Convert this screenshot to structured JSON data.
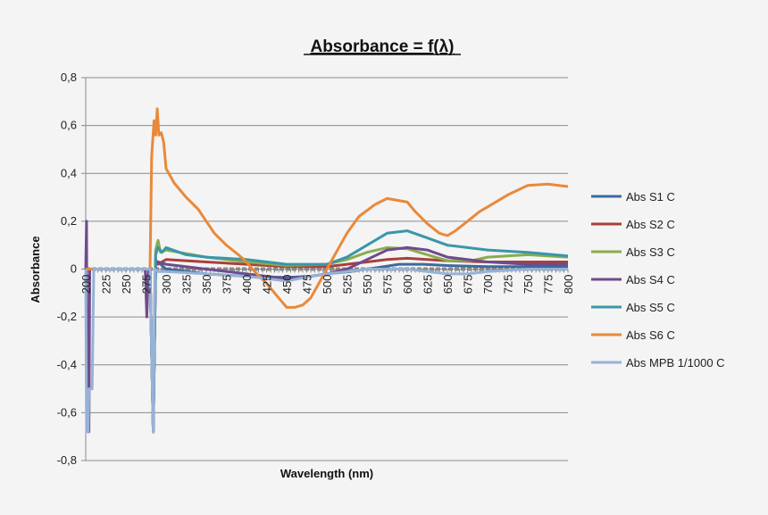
{
  "chart_data": {
    "type": "line",
    "title": "Absorbance = f(λ)",
    "xlabel": "Wavelength (nm)",
    "ylabel": "Absorbance",
    "xlim": [
      200,
      800
    ],
    "ylim": [
      -0.8,
      0.8
    ],
    "x_ticks": [
      "200",
      "225",
      "250",
      "275",
      "300",
      "325",
      "350",
      "375",
      "400",
      "425",
      "450",
      "475",
      "500",
      "525",
      "550",
      "575",
      "600",
      "625",
      "650",
      "675",
      "700",
      "725",
      "750",
      "775",
      "800"
    ],
    "y_ticks": [
      "0,8",
      "0,6",
      "0,4",
      "0,2",
      "0",
      "-0,2",
      "-0,4",
      "-0,6",
      "-0,8"
    ],
    "grid": true,
    "legend_position": "right",
    "series": [
      {
        "name": "Abs S1 C",
        "color": "#3b6aa0",
        "points": [
          [
            200,
            0
          ],
          [
            280,
            0
          ],
          [
            284,
            -0.68
          ],
          [
            287,
            0.02
          ],
          [
            290,
            0.03
          ],
          [
            300,
            0.0
          ],
          [
            350,
            -0.02
          ],
          [
            400,
            -0.03
          ],
          [
            450,
            -0.035
          ],
          [
            480,
            -0.03
          ],
          [
            500,
            -0.02
          ],
          [
            530,
            -0.01
          ],
          [
            560,
            0.005
          ],
          [
            590,
            0.02
          ],
          [
            620,
            0.02
          ],
          [
            650,
            0.015
          ],
          [
            700,
            0.01
          ],
          [
            750,
            0.01
          ],
          [
            800,
            0.01
          ]
        ]
      },
      {
        "name": "Abs S2 C",
        "color": "#a8403c",
        "points": [
          [
            200,
            0
          ],
          [
            280,
            0
          ],
          [
            284,
            -0.68
          ],
          [
            287,
            0.04
          ],
          [
            290,
            0.02
          ],
          [
            300,
            0.04
          ],
          [
            350,
            0.03
          ],
          [
            400,
            0.02
          ],
          [
            450,
            0.01
          ],
          [
            500,
            0.01
          ],
          [
            525,
            0.02
          ],
          [
            550,
            0.03
          ],
          [
            575,
            0.04
          ],
          [
            600,
            0.045
          ],
          [
            625,
            0.04
          ],
          [
            650,
            0.035
          ],
          [
            700,
            0.03
          ],
          [
            750,
            0.03
          ],
          [
            800,
            0.03
          ]
        ]
      },
      {
        "name": "Abs S3 C",
        "color": "#8aac4b",
        "points": [
          [
            200,
            0
          ],
          [
            280,
            0
          ],
          [
            284,
            -0.68
          ],
          [
            287,
            0.08
          ],
          [
            290,
            0.12
          ],
          [
            293,
            0.07
          ],
          [
            300,
            0.08
          ],
          [
            350,
            0.05
          ],
          [
            400,
            0.03
          ],
          [
            450,
            0.015
          ],
          [
            500,
            0.02
          ],
          [
            525,
            0.04
          ],
          [
            550,
            0.07
          ],
          [
            575,
            0.09
          ],
          [
            600,
            0.085
          ],
          [
            625,
            0.06
          ],
          [
            650,
            0.035
          ],
          [
            680,
            0.035
          ],
          [
            700,
            0.05
          ],
          [
            750,
            0.06
          ],
          [
            800,
            0.05
          ]
        ]
      },
      {
        "name": "Abs S4 C",
        "color": "#6f4b8b",
        "points": [
          [
            200,
            0
          ],
          [
            201,
            0.2
          ],
          [
            202,
            -0.68
          ],
          [
            204,
            -0.68
          ],
          [
            205,
            0
          ],
          [
            274,
            0
          ],
          [
            276,
            -0.2
          ],
          [
            278,
            0
          ],
          [
            280,
            0
          ],
          [
            284,
            -0.68
          ],
          [
            287,
            0.02
          ],
          [
            290,
            0.03
          ],
          [
            300,
            0.02
          ],
          [
            350,
            0.0
          ],
          [
            400,
            -0.02
          ],
          [
            450,
            -0.04
          ],
          [
            480,
            -0.03
          ],
          [
            500,
            -0.02
          ],
          [
            525,
            0.0
          ],
          [
            550,
            0.04
          ],
          [
            575,
            0.08
          ],
          [
            600,
            0.09
          ],
          [
            625,
            0.08
          ],
          [
            650,
            0.05
          ],
          [
            700,
            0.03
          ],
          [
            750,
            0.02
          ],
          [
            800,
            0.02
          ]
        ]
      },
      {
        "name": "Abs S5 C",
        "color": "#3a96aa",
        "points": [
          [
            200,
            0
          ],
          [
            280,
            0
          ],
          [
            284,
            -0.68
          ],
          [
            287,
            0.06
          ],
          [
            290,
            0.09
          ],
          [
            295,
            0.07
          ],
          [
            300,
            0.09
          ],
          [
            325,
            0.06
          ],
          [
            350,
            0.05
          ],
          [
            400,
            0.04
          ],
          [
            450,
            0.02
          ],
          [
            500,
            0.02
          ],
          [
            525,
            0.05
          ],
          [
            550,
            0.1
          ],
          [
            575,
            0.15
          ],
          [
            600,
            0.16
          ],
          [
            625,
            0.13
          ],
          [
            650,
            0.1
          ],
          [
            700,
            0.08
          ],
          [
            750,
            0.07
          ],
          [
            800,
            0.055
          ]
        ]
      },
      {
        "name": "Abs S6 C",
        "color": "#e9893a",
        "points": [
          [
            200,
            0
          ],
          [
            280,
            0
          ],
          [
            282,
            0.47
          ],
          [
            285,
            0.62
          ],
          [
            287,
            0.56
          ],
          [
            289,
            0.67
          ],
          [
            291,
            0.56
          ],
          [
            294,
            0.57
          ],
          [
            297,
            0.53
          ],
          [
            300,
            0.42
          ],
          [
            310,
            0.36
          ],
          [
            325,
            0.3
          ],
          [
            340,
            0.25
          ],
          [
            350,
            0.2
          ],
          [
            360,
            0.15
          ],
          [
            375,
            0.1
          ],
          [
            390,
            0.06
          ],
          [
            400,
            0.03
          ],
          [
            410,
            -0.01
          ],
          [
            425,
            -0.06
          ],
          [
            440,
            -0.12
          ],
          [
            450,
            -0.16
          ],
          [
            460,
            -0.16
          ],
          [
            470,
            -0.15
          ],
          [
            480,
            -0.12
          ],
          [
            490,
            -0.06
          ],
          [
            500,
            0.0
          ],
          [
            510,
            0.06
          ],
          [
            525,
            0.15
          ],
          [
            540,
            0.22
          ],
          [
            560,
            0.27
          ],
          [
            575,
            0.295
          ],
          [
            600,
            0.28
          ],
          [
            610,
            0.24
          ],
          [
            625,
            0.19
          ],
          [
            640,
            0.15
          ],
          [
            650,
            0.14
          ],
          [
            660,
            0.16
          ],
          [
            675,
            0.2
          ],
          [
            690,
            0.24
          ],
          [
            700,
            0.26
          ],
          [
            725,
            0.31
          ],
          [
            750,
            0.35
          ],
          [
            775,
            0.355
          ],
          [
            800,
            0.345
          ]
        ]
      },
      {
        "name": "Abs MPB 1/1000 C",
        "color": "#96b2d7",
        "points": [
          [
            200,
            0
          ],
          [
            201,
            -0.68
          ],
          [
            203,
            -0.68
          ],
          [
            204,
            -0.5
          ],
          [
            206,
            -0.5
          ],
          [
            208,
            -0.5
          ],
          [
            210,
            0
          ],
          [
            280,
            0
          ],
          [
            284,
            -0.68
          ],
          [
            286,
            0.0
          ],
          [
            290,
            -0.01
          ],
          [
            300,
            -0.01
          ],
          [
            350,
            -0.02
          ],
          [
            400,
            -0.03
          ],
          [
            450,
            -0.05
          ],
          [
            480,
            -0.03
          ],
          [
            500,
            -0.02
          ],
          [
            525,
            -0.01
          ],
          [
            550,
            0.0
          ],
          [
            575,
            0.0
          ],
          [
            600,
            0.0
          ],
          [
            625,
            -0.01
          ],
          [
            650,
            -0.02
          ],
          [
            675,
            -0.02
          ],
          [
            700,
            -0.01
          ],
          [
            750,
            0.0
          ],
          [
            800,
            0.0
          ]
        ]
      }
    ]
  }
}
